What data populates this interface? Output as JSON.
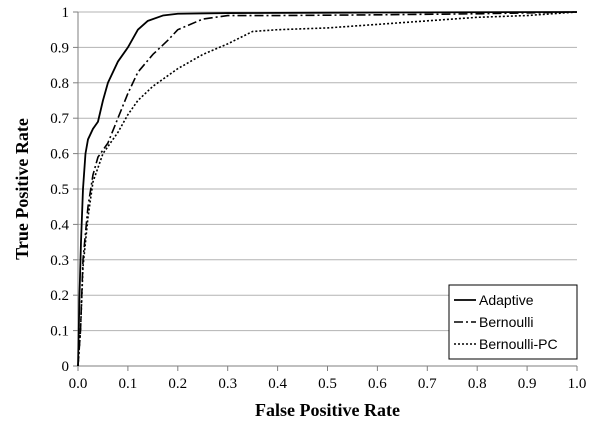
{
  "chart_data": {
    "type": "line",
    "title": "",
    "xlabel": "False Positive Rate",
    "ylabel": "True Positive Rate",
    "xlim": [
      0,
      1
    ],
    "ylim": [
      0,
      1
    ],
    "x_ticks": [
      0,
      0.1,
      0.2,
      0.3,
      0.4,
      0.5,
      0.6,
      0.7,
      0.8,
      0.9,
      1.0
    ],
    "x_tick_labels": [
      "0.0",
      "0.1",
      "0.2",
      "0.3",
      "0.4",
      "0.5",
      "0.6",
      "0.7",
      "0.8",
      "0.9",
      "1.0"
    ],
    "y_ticks": [
      0,
      0.1,
      0.2,
      0.3,
      0.4,
      0.5,
      0.6,
      0.7,
      0.8,
      0.9,
      1
    ],
    "y_tick_labels": [
      "0",
      "0.1",
      "0.2",
      "0.3",
      "0.4",
      "0.5",
      "0.6",
      "0.7",
      "0.8",
      "0.9",
      "1"
    ],
    "grid": "horizontal",
    "legend_position": "bottom-right",
    "series": [
      {
        "name": "Adaptive",
        "line_style": "solid",
        "color": "#000000",
        "points": [
          [
            0,
            0
          ],
          [
            0.003,
            0.2
          ],
          [
            0.006,
            0.35
          ],
          [
            0.01,
            0.5
          ],
          [
            0.015,
            0.6
          ],
          [
            0.02,
            0.64
          ],
          [
            0.03,
            0.67
          ],
          [
            0.04,
            0.69
          ],
          [
            0.05,
            0.75
          ],
          [
            0.06,
            0.8
          ],
          [
            0.08,
            0.86
          ],
          [
            0.1,
            0.9
          ],
          [
            0.12,
            0.95
          ],
          [
            0.14,
            0.975
          ],
          [
            0.17,
            0.99
          ],
          [
            0.2,
            0.995
          ],
          [
            0.3,
            0.997
          ],
          [
            0.5,
            0.998
          ],
          [
            0.7,
            0.999
          ],
          [
            1.0,
            1.0
          ]
        ]
      },
      {
        "name": "Bernoulli",
        "line_style": "dash-dot",
        "color": "#000000",
        "points": [
          [
            0,
            0
          ],
          [
            0.005,
            0.1
          ],
          [
            0.01,
            0.3
          ],
          [
            0.02,
            0.45
          ],
          [
            0.03,
            0.54
          ],
          [
            0.04,
            0.59
          ],
          [
            0.06,
            0.63
          ],
          [
            0.08,
            0.7
          ],
          [
            0.1,
            0.77
          ],
          [
            0.12,
            0.83
          ],
          [
            0.15,
            0.88
          ],
          [
            0.18,
            0.92
          ],
          [
            0.2,
            0.95
          ],
          [
            0.25,
            0.98
          ],
          [
            0.3,
            0.99
          ],
          [
            0.4,
            0.99
          ],
          [
            0.6,
            0.992
          ],
          [
            0.8,
            0.995
          ],
          [
            1.0,
            1.0
          ]
        ]
      },
      {
        "name": "Bernoulli-PC",
        "line_style": "dotted",
        "color": "#000000",
        "points": [
          [
            0,
            0
          ],
          [
            0.005,
            0.1
          ],
          [
            0.01,
            0.28
          ],
          [
            0.02,
            0.42
          ],
          [
            0.03,
            0.52
          ],
          [
            0.05,
            0.6
          ],
          [
            0.08,
            0.66
          ],
          [
            0.1,
            0.71
          ],
          [
            0.12,
            0.75
          ],
          [
            0.15,
            0.79
          ],
          [
            0.2,
            0.84
          ],
          [
            0.25,
            0.88
          ],
          [
            0.3,
            0.91
          ],
          [
            0.35,
            0.945
          ],
          [
            0.4,
            0.95
          ],
          [
            0.5,
            0.955
          ],
          [
            0.6,
            0.965
          ],
          [
            0.7,
            0.975
          ],
          [
            0.8,
            0.985
          ],
          [
            0.9,
            0.99
          ],
          [
            1.0,
            1.0
          ]
        ]
      }
    ]
  }
}
